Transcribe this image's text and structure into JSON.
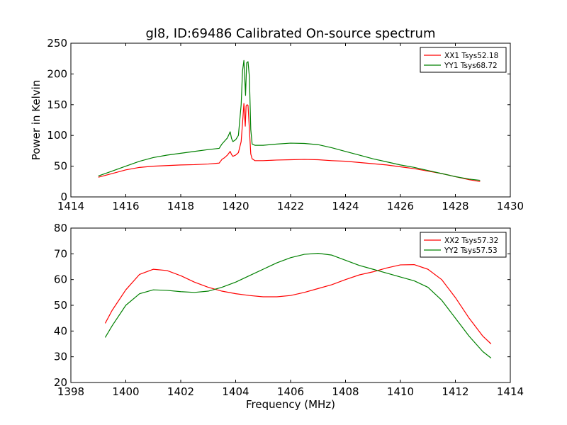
{
  "figure": {
    "title": "gl8, ID:69486 Calibrated On-source spectrum"
  },
  "chart_data": [
    {
      "type": "line",
      "title": "gl8, ID:69486 Calibrated On-source spectrum",
      "xlabel": "",
      "ylabel": "Power in Kelvin",
      "xlim": [
        1414,
        1430
      ],
      "ylim": [
        0,
        250
      ],
      "xticks": [
        1414,
        1416,
        1418,
        1420,
        1422,
        1424,
        1426,
        1428,
        1430
      ],
      "yticks": [
        0,
        50,
        100,
        150,
        200,
        250
      ],
      "grid": false,
      "legend_position": "top-right",
      "series": [
        {
          "name": "XX1 Tsys52.18",
          "color": "#ff0000",
          "x": [
            1415.0,
            1415.5,
            1416.0,
            1416.5,
            1417.0,
            1417.5,
            1418.0,
            1418.5,
            1419.0,
            1419.4,
            1419.5,
            1419.6,
            1419.7,
            1419.8,
            1419.85,
            1419.9,
            1420.0,
            1420.1,
            1420.2,
            1420.25,
            1420.3,
            1420.35,
            1420.38,
            1420.42,
            1420.45,
            1420.5,
            1420.55,
            1420.6,
            1420.7,
            1421.0,
            1421.5,
            1422.0,
            1422.5,
            1423.0,
            1423.5,
            1424.0,
            1424.5,
            1425.0,
            1425.5,
            1426.0,
            1426.5,
            1427.0,
            1427.5,
            1428.0,
            1428.5,
            1428.9
          ],
          "values": [
            32,
            38,
            44,
            48,
            50,
            51,
            52,
            52.5,
            53.5,
            55,
            61,
            64,
            68,
            74,
            69,
            66,
            68,
            72,
            90,
            120,
            152,
            115,
            148,
            150,
            149,
            110,
            70,
            62,
            59,
            59,
            60,
            60.5,
            61,
            60.5,
            59,
            58,
            56,
            54,
            52,
            49,
            46,
            42,
            38,
            33,
            28,
            25
          ]
        },
        {
          "name": "YY1 Tsys68.72",
          "color": "#008000",
          "x": [
            1415.0,
            1415.5,
            1416.0,
            1416.5,
            1417.0,
            1417.5,
            1418.0,
            1418.5,
            1419.0,
            1419.4,
            1419.5,
            1419.6,
            1419.7,
            1419.8,
            1419.85,
            1419.9,
            1420.0,
            1420.1,
            1420.2,
            1420.25,
            1420.3,
            1420.33,
            1420.36,
            1420.4,
            1420.45,
            1420.5,
            1420.55,
            1420.6,
            1420.7,
            1421.0,
            1421.5,
            1422.0,
            1422.5,
            1423.0,
            1423.5,
            1424.0,
            1424.5,
            1425.0,
            1425.5,
            1426.0,
            1426.5,
            1427.0,
            1427.5,
            1428.0,
            1428.5,
            1428.9
          ],
          "values": [
            34,
            42,
            50,
            58,
            64,
            68,
            71,
            74,
            77,
            79,
            86,
            91,
            96,
            106,
            95,
            90,
            93,
            100,
            150,
            205,
            222,
            195,
            165,
            218,
            220,
            195,
            110,
            86,
            84,
            84,
            86,
            87.5,
            87,
            85,
            80,
            74,
            68,
            62,
            57,
            52,
            48,
            43,
            38,
            33,
            29,
            27
          ]
        }
      ]
    },
    {
      "type": "line",
      "title": "",
      "xlabel": "Frequency (MHz)",
      "ylabel": "",
      "xlim": [
        1398,
        1414
      ],
      "ylim": [
        20,
        80
      ],
      "xticks": [
        1398,
        1400,
        1402,
        1404,
        1406,
        1408,
        1410,
        1412,
        1414
      ],
      "yticks": [
        20,
        30,
        40,
        50,
        60,
        70,
        80
      ],
      "grid": false,
      "legend_position": "top-right",
      "series": [
        {
          "name": "XX2 Tsys57.32",
          "color": "#ff0000",
          "x": [
            1399.25,
            1399.5,
            1400.0,
            1400.5,
            1401.0,
            1401.5,
            1402.0,
            1402.5,
            1403.0,
            1403.5,
            1404.0,
            1404.5,
            1405.0,
            1405.5,
            1406.0,
            1406.5,
            1407.0,
            1407.5,
            1408.0,
            1408.5,
            1409.0,
            1409.5,
            1410.0,
            1410.5,
            1411.0,
            1411.5,
            1412.0,
            1412.5,
            1413.0,
            1413.3
          ],
          "values": [
            43,
            48,
            56,
            62,
            64,
            63.5,
            61.5,
            59,
            57,
            55.5,
            54.5,
            53.8,
            53.3,
            53.3,
            53.8,
            55,
            56.5,
            58,
            60,
            61.8,
            63,
            64.5,
            65.7,
            65.8,
            64,
            60,
            53,
            45,
            38,
            35
          ]
        },
        {
          "name": "YY2 Tsys57.53",
          "color": "#008000",
          "x": [
            1399.25,
            1399.5,
            1400.0,
            1400.5,
            1401.0,
            1401.5,
            1402.0,
            1402.5,
            1403.0,
            1403.5,
            1404.0,
            1404.5,
            1405.0,
            1405.5,
            1406.0,
            1406.5,
            1407.0,
            1407.5,
            1408.0,
            1408.5,
            1409.0,
            1409.5,
            1410.0,
            1410.5,
            1411.0,
            1411.5,
            1412.0,
            1412.5,
            1413.0,
            1413.3
          ],
          "values": [
            37.5,
            42,
            50,
            54.5,
            56,
            55.8,
            55.3,
            55,
            55.5,
            57,
            59,
            61.5,
            64,
            66.5,
            68.5,
            69.8,
            70.2,
            69.5,
            67.5,
            65.5,
            64,
            62.5,
            61,
            59.5,
            57,
            52,
            45,
            38,
            32,
            29.5
          ]
        }
      ]
    }
  ]
}
